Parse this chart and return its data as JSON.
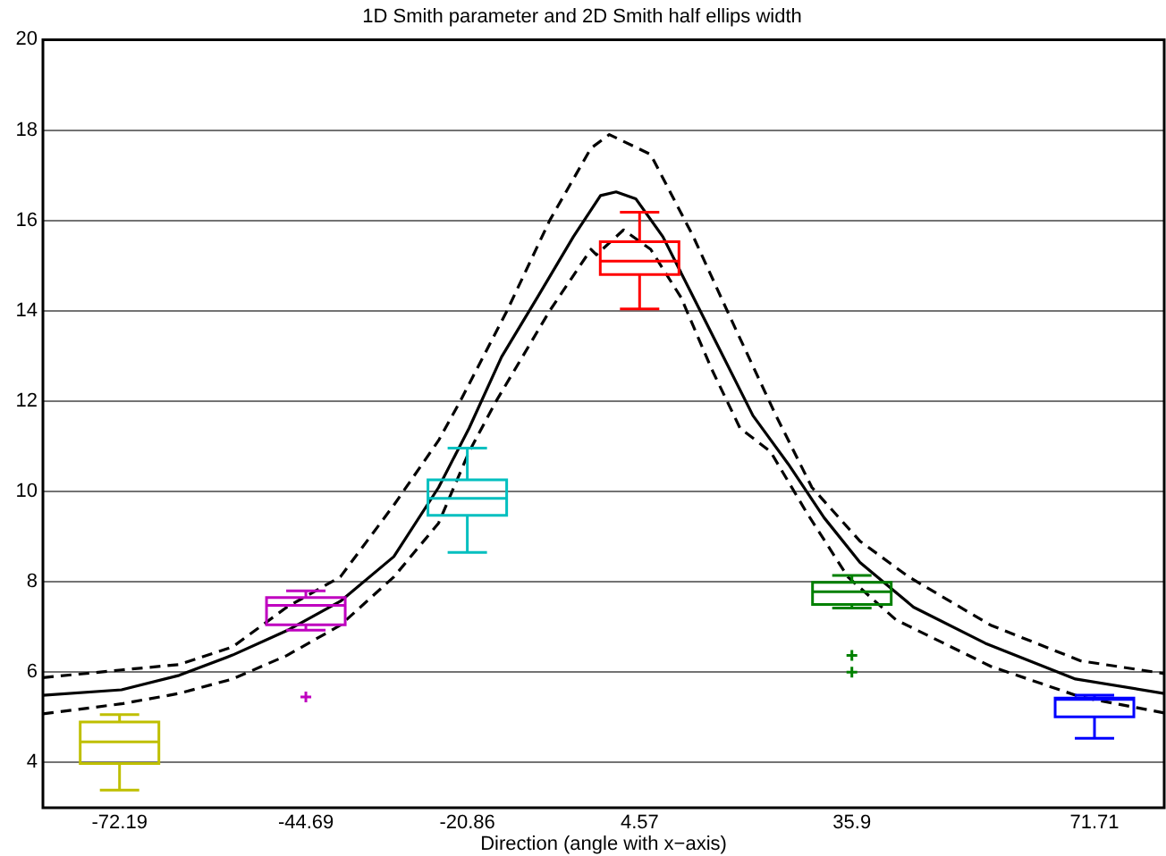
{
  "chart_data": {
    "type": "box",
    "title": "1D Smith parameter and 2D Smith half ellips width",
    "xlabel": "Direction (angle with x−axis)",
    "x": [
      -72.19,
      -44.69,
      -20.86,
      4.57,
      35.9,
      71.71
    ],
    "colors": [
      "#bfbf00",
      "#bf00bf",
      "#00bfbf",
      "#ff0000",
      "#008000",
      "#0000ff"
    ],
    "boxes": [
      {
        "low": 3.39,
        "q1": 3.98,
        "median": 4.46,
        "q3": 4.9,
        "high": 5.06
      },
      {
        "low": 6.93,
        "q1": 7.05,
        "median": 7.48,
        "q3": 7.65,
        "high": 7.8,
        "outliers": [
          5.45
        ]
      },
      {
        "low": 8.65,
        "q1": 9.47,
        "median": 9.85,
        "q3": 10.26,
        "high": 10.96
      },
      {
        "low": 14.04,
        "q1": 14.8,
        "median": 15.1,
        "q3": 15.53,
        "high": 16.18
      },
      {
        "low": 7.42,
        "q1": 7.5,
        "median": 7.78,
        "q3": 7.99,
        "high": 8.14,
        "outliers": [
          6.37,
          6.0
        ]
      },
      {
        "low": 4.54,
        "q1": 5.01,
        "median": 5.4,
        "q3": 5.43,
        "high": 5.49
      }
    ],
    "series": [
      {
        "type": "line",
        "color": "#000000",
        "line_style": "solid",
        "x": [
          -83.5,
          -71.9,
          -63.4,
          -55.5,
          -47.5,
          -39.6,
          -31.7,
          -25.1,
          -20.6,
          -15.8,
          -10.5,
          -5.2,
          -1.2,
          1.1,
          4.0,
          8.0,
          12.0,
          16.0,
          21.3,
          26.5,
          31.8,
          37.1,
          45.0,
          55.6,
          68.9,
          82
        ],
        "values": [
          5.49,
          5.61,
          5.93,
          6.38,
          6.92,
          7.57,
          8.56,
          10.09,
          11.4,
          12.98,
          14.3,
          15.64,
          16.55,
          16.63,
          16.48,
          15.64,
          14.45,
          13.26,
          11.68,
          10.61,
          9.42,
          8.43,
          7.44,
          6.64,
          5.85,
          5.53
        ]
      },
      {
        "type": "line",
        "color": "#000000",
        "line_style": "dashed",
        "x": [
          -83.5,
          -71.9,
          -63.4,
          -55.5,
          -47.5,
          -39.6,
          -31.7,
          -25.1,
          -21.9,
          -15.0,
          -8.7,
          -2.6,
          0.1,
          6.2,
          12.5,
          17.8,
          24.7,
          30.0,
          37.1,
          44.3,
          56.4,
          69.7,
          82
        ],
        "values": [
          5.88,
          6.05,
          6.17,
          6.56,
          7.44,
          8.11,
          9.7,
          11.13,
          12.0,
          14.0,
          16.0,
          17.6,
          17.9,
          17.46,
          15.64,
          13.9,
          11.68,
          10.09,
          8.9,
          8.11,
          7.04,
          6.25,
          5.97
        ]
      },
      {
        "type": "line",
        "color": "#000000",
        "line_style": "dashed",
        "x": [
          -83.5,
          -71.9,
          -63.4,
          -55.5,
          -47.5,
          -39.6,
          -31.7,
          -25.1,
          -20.6,
          -16.6,
          -8.7,
          -2.6,
          -1.8,
          2.2,
          6.2,
          10.7,
          15.2,
          19.4,
          23.9,
          29.2,
          35.3,
          42.4,
          56.4,
          69.7,
          82
        ],
        "values": [
          5.08,
          5.3,
          5.53,
          5.85,
          6.37,
          7.04,
          8.11,
          9.3,
          10.88,
          12.0,
          14.0,
          15.36,
          15.24,
          15.79,
          15.36,
          14.29,
          12.71,
          11.4,
          10.88,
          9.54,
          8.11,
          7.16,
          6.13,
          5.45,
          5.1
        ]
      }
    ],
    "xlim": [
      -83.5,
      82
    ],
    "xticks": [
      -72.19,
      -44.69,
      -20.86,
      4.57,
      35.9,
      71.71
    ],
    "ylim": [
      3,
      20
    ],
    "yticks": [
      4,
      6,
      8,
      10,
      12,
      14,
      16,
      18,
      20
    ],
    "grid": "y"
  }
}
